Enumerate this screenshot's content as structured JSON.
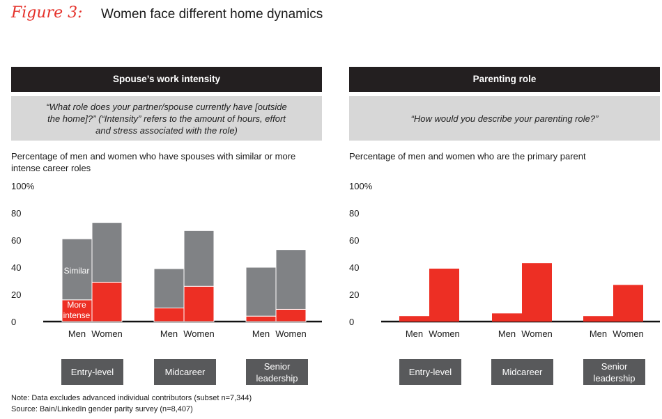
{
  "figure": {
    "label": "Figure 3:",
    "title": "Women face different home dynamics"
  },
  "colors": {
    "similar": "#808285",
    "more_intense": "#ed2f24",
    "primary": "#ed2f24",
    "header": "#231f20",
    "stage": "#58595b"
  },
  "left_panel": {
    "header": "Spouse’s work intensity",
    "question": "“What role does your partner/spouse currently have [outside the home]?” (“Intensity” refers to the amount of hours, effort and stress associated with the role)",
    "subtitle": "Percentage of men and women who have spouses with similar or more intense career roles",
    "label_similar": "Similar",
    "label_more": "More",
    "label_intense": "intense"
  },
  "right_panel": {
    "header": "Parenting role",
    "question": "“How would you describe your parenting role?”",
    "subtitle": "Percentage of men and women who are the primary parent"
  },
  "groups": [
    "Entry-level",
    "Midcareer",
    "Senior leadership"
  ],
  "bar_labels": [
    "Men",
    "Women"
  ],
  "y_ticks": [
    "100%",
    "80",
    "60",
    "40",
    "20",
    "0"
  ],
  "chart_data": [
    {
      "type": "bar",
      "stacked": true,
      "title": "Spouse’s work intensity",
      "categories": [
        "Entry-level",
        "Midcareer",
        "Senior leadership"
      ],
      "subcategories": [
        "Men",
        "Women"
      ],
      "series": [
        {
          "name": "More intense",
          "values": [
            [
              16,
              29
            ],
            [
              10,
              26
            ],
            [
              4,
              9
            ]
          ]
        },
        {
          "name": "Similar",
          "values": [
            [
              45,
              44
            ],
            [
              29,
              41
            ],
            [
              36,
              44
            ]
          ]
        }
      ],
      "ylim": [
        0,
        100
      ],
      "yticks": [
        0,
        20,
        40,
        60,
        80,
        100
      ]
    },
    {
      "type": "bar",
      "title": "Parenting role",
      "categories": [
        "Entry-level",
        "Midcareer",
        "Senior leadership"
      ],
      "subcategories": [
        "Men",
        "Women"
      ],
      "series": [
        {
          "values": [
            [
              4,
              39
            ],
            [
              6,
              43
            ],
            [
              4,
              27
            ]
          ]
        }
      ],
      "ylim": [
        0,
        100
      ],
      "yticks": [
        0,
        20,
        40,
        60,
        80,
        100
      ]
    }
  ],
  "notes": {
    "note": "Note: Data excludes advanced individual contributors (subset n=7,344)",
    "source": "Source: Bain/LinkedIn gender parity survey (n=8,407)"
  }
}
